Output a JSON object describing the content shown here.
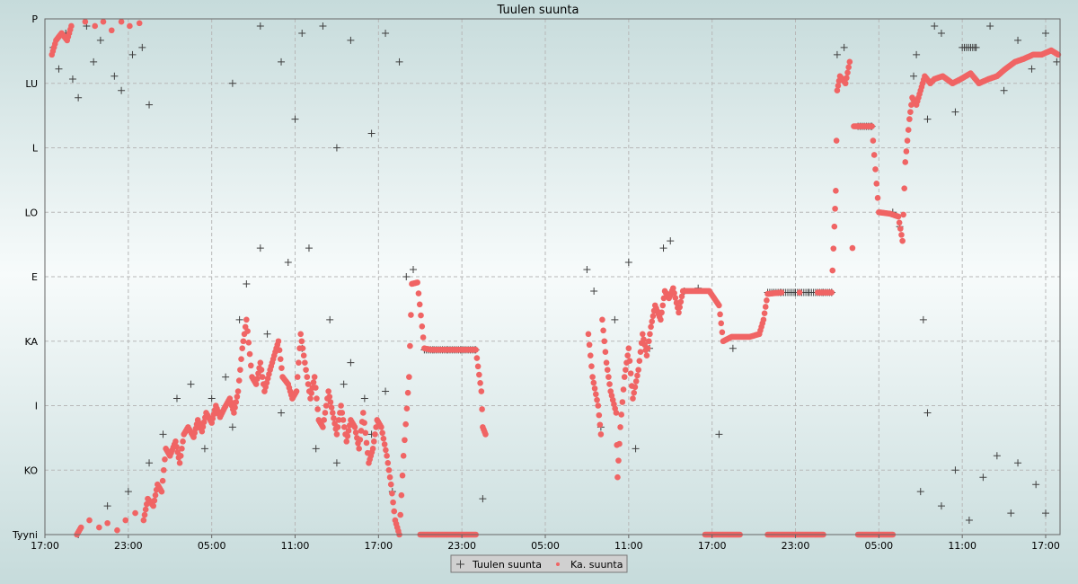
{
  "chart_data": {
    "type": "scatter",
    "title": "Tuulen suunta",
    "xlabel": "",
    "ylabel": "",
    "x_unit": "hours from first tick (17:00)",
    "xlim": [
      0,
      73
    ],
    "ylim": [
      0,
      360
    ],
    "grid": true,
    "legend_position": "bottom-center",
    "x_ticks": [
      {
        "h": 0,
        "label": "17:00"
      },
      {
        "h": 6,
        "label": "23:00"
      },
      {
        "h": 12,
        "label": "05:00"
      },
      {
        "h": 18,
        "label": "11:00"
      },
      {
        "h": 24,
        "label": "17:00"
      },
      {
        "h": 30,
        "label": "23:00"
      },
      {
        "h": 36,
        "label": "05:00"
      },
      {
        "h": 42,
        "label": "11:00"
      },
      {
        "h": 48,
        "label": "17:00"
      },
      {
        "h": 54,
        "label": "23:00"
      },
      {
        "h": 60,
        "label": "05:00"
      },
      {
        "h": 66,
        "label": "11:00"
      },
      {
        "h": 72,
        "label": "17:00"
      }
    ],
    "y_ticks": [
      {
        "deg": 0,
        "label": "Tyyni"
      },
      {
        "deg": 45,
        "label": "KO"
      },
      {
        "deg": 90,
        "label": "I"
      },
      {
        "deg": 135,
        "label": "KA"
      },
      {
        "deg": 180,
        "label": "E"
      },
      {
        "deg": 225,
        "label": "LO"
      },
      {
        "deg": 270,
        "label": "L"
      },
      {
        "deg": 315,
        "label": "LU"
      },
      {
        "deg": 360,
        "label": "P"
      }
    ],
    "series": [
      {
        "name": "Tuulen suunta",
        "marker": "plus",
        "color": "#404040",
        "points": [
          [
            0.6,
            340
          ],
          [
            1.0,
            325
          ],
          [
            1.5,
            350
          ],
          [
            2.0,
            318
          ],
          [
            2.4,
            305
          ],
          [
            3.0,
            355
          ],
          [
            3.5,
            330
          ],
          [
            4.0,
            345
          ],
          [
            5.0,
            320
          ],
          [
            5.5,
            310
          ],
          [
            6.3,
            335
          ],
          [
            7.0,
            340
          ],
          [
            7.5,
            300
          ],
          [
            2.4,
            0
          ],
          [
            4.5,
            20
          ],
          [
            6.0,
            30
          ],
          [
            7.5,
            50
          ],
          [
            8.5,
            70
          ],
          [
            9.5,
            95
          ],
          [
            10.5,
            105
          ],
          [
            11.5,
            60
          ],
          [
            12.0,
            95
          ],
          [
            13.0,
            110
          ],
          [
            13.5,
            75
          ],
          [
            14.0,
            150
          ],
          [
            14.5,
            175
          ],
          [
            15.5,
            200
          ],
          [
            16.0,
            140
          ],
          [
            17.0,
            85
          ],
          [
            17.5,
            190
          ],
          [
            18.5,
            130
          ],
          [
            19.0,
            200
          ],
          [
            19.5,
            60
          ],
          [
            20.5,
            150
          ],
          [
            21.0,
            50
          ],
          [
            21.5,
            105
          ],
          [
            22.0,
            120
          ],
          [
            23.0,
            95
          ],
          [
            23.5,
            70
          ],
          [
            24.5,
            100
          ],
          [
            25.0,
            30
          ],
          [
            26.0,
            180
          ],
          [
            26.5,
            185
          ],
          [
            27.3,
            129
          ],
          [
            28,
            129
          ],
          [
            29,
            129
          ],
          [
            30,
            129
          ],
          [
            31,
            129
          ],
          [
            31.5,
            25
          ],
          [
            39.0,
            185
          ],
          [
            39.5,
            170
          ],
          [
            40.0,
            75
          ],
          [
            41.0,
            150
          ],
          [
            42.0,
            190
          ],
          [
            42.5,
            60
          ],
          [
            43.5,
            130
          ],
          [
            44.5,
            200
          ],
          [
            45.0,
            205
          ],
          [
            46,
            170
          ],
          [
            47,
            172
          ],
          [
            48.5,
            70
          ],
          [
            49.5,
            130
          ],
          [
            52,
            169
          ],
          [
            53,
            169
          ],
          [
            54,
            169
          ],
          [
            55,
            169
          ],
          [
            56,
            169
          ],
          [
            56.6,
            169
          ],
          [
            57.0,
            335
          ],
          [
            57.5,
            340
          ],
          [
            58.5,
            285
          ],
          [
            59.5,
            285
          ],
          [
            61,
            225
          ],
          [
            61.5,
            215
          ],
          [
            62.5,
            320
          ],
          [
            62.7,
            335
          ],
          [
            63.5,
            290
          ],
          [
            64.0,
            355
          ],
          [
            64.5,
            350
          ],
          [
            65.5,
            295
          ],
          [
            66.0,
            340
          ],
          [
            67.0,
            340
          ],
          [
            68.0,
            355
          ],
          [
            69.0,
            310
          ],
          [
            70.0,
            345
          ],
          [
            71.0,
            325
          ],
          [
            72.0,
            350
          ],
          [
            72.8,
            330
          ],
          [
            63.2,
            150
          ],
          [
            63.5,
            85
          ],
          [
            63,
            30
          ],
          [
            64.5,
            20
          ],
          [
            65.5,
            45
          ],
          [
            66.5,
            10
          ],
          [
            67.5,
            40
          ],
          [
            68.5,
            55
          ],
          [
            69.5,
            15
          ],
          [
            70,
            50
          ],
          [
            71.3,
            35
          ],
          [
            72.0,
            15
          ],
          [
            15.5,
            355
          ],
          [
            17,
            330
          ],
          [
            18.5,
            350
          ],
          [
            20,
            355
          ],
          [
            22,
            345
          ],
          [
            24.5,
            350
          ],
          [
            25.5,
            330
          ],
          [
            13.5,
            315
          ],
          [
            18,
            290
          ],
          [
            21,
            270
          ],
          [
            23.5,
            280
          ]
        ]
      },
      {
        "name": "Ka. suunta",
        "marker": "dot",
        "color": "#f06464",
        "points": [
          [
            0.5,
            335
          ],
          [
            0.8,
            345
          ],
          [
            1.2,
            350
          ],
          [
            1.6,
            345
          ],
          [
            1.9,
            355
          ],
          [
            2.3,
            0
          ],
          [
            2.6,
            5
          ],
          [
            2.9,
            358
          ],
          [
            3.2,
            10
          ],
          [
            3.6,
            355
          ],
          [
            3.9,
            5
          ],
          [
            4.2,
            358
          ],
          [
            4.5,
            8
          ],
          [
            4.8,
            352
          ],
          [
            5.2,
            3
          ],
          [
            5.5,
            358
          ],
          [
            5.8,
            10
          ],
          [
            6.1,
            355
          ],
          [
            6.5,
            15
          ],
          [
            6.8,
            357
          ],
          [
            7.1,
            10
          ],
          [
            7.4,
            25
          ],
          [
            7.8,
            20
          ],
          [
            8.1,
            35
          ],
          [
            8.4,
            30
          ],
          [
            8.7,
            60
          ],
          [
            9.0,
            55
          ],
          [
            9.4,
            65
          ],
          [
            9.7,
            50
          ],
          [
            10.0,
            70
          ],
          [
            10.3,
            75
          ],
          [
            10.7,
            68
          ],
          [
            11.0,
            80
          ],
          [
            11.3,
            72
          ],
          [
            11.6,
            85
          ],
          [
            12.0,
            78
          ],
          [
            12.3,
            90
          ],
          [
            12.6,
            82
          ],
          [
            12.9,
            88
          ],
          [
            13.3,
            95
          ],
          [
            13.6,
            85
          ],
          [
            13.9,
            100
          ],
          [
            14.2,
            130
          ],
          [
            14.5,
            150
          ],
          [
            14.9,
            110
          ],
          [
            15.2,
            105
          ],
          [
            15.5,
            120
          ],
          [
            15.8,
            100
          ],
          [
            16.2,
            115
          ],
          [
            16.5,
            125
          ],
          [
            16.8,
            135
          ],
          [
            17.1,
            110
          ],
          [
            17.5,
            105
          ],
          [
            17.8,
            95
          ],
          [
            18.1,
            100
          ],
          [
            18.4,
            140
          ],
          [
            18.7,
            120
          ],
          [
            19.1,
            95
          ],
          [
            19.4,
            110
          ],
          [
            19.7,
            80
          ],
          [
            20.0,
            75
          ],
          [
            20.4,
            100
          ],
          [
            20.7,
            85
          ],
          [
            21.0,
            70
          ],
          [
            21.3,
            90
          ],
          [
            21.7,
            65
          ],
          [
            22.0,
            80
          ],
          [
            22.3,
            75
          ],
          [
            22.6,
            60
          ],
          [
            22.9,
            85
          ],
          [
            23.3,
            50
          ],
          [
            23.6,
            60
          ],
          [
            23.9,
            80
          ],
          [
            24.2,
            75
          ],
          [
            24.6,
            55
          ],
          [
            24.9,
            35
          ],
          [
            25.2,
            10
          ],
          [
            25.5,
            0
          ],
          [
            25.8,
            55
          ],
          [
            26.2,
            110
          ],
          [
            26.4,
            175
          ],
          [
            26.8,
            176
          ],
          [
            27.3,
            130
          ],
          [
            27.8,
            129
          ],
          [
            28.4,
            129
          ],
          [
            29.1,
            129
          ],
          [
            29.7,
            129
          ],
          [
            30.4,
            129
          ],
          [
            31.0,
            129
          ],
          [
            31.4,
            100
          ],
          [
            31.5,
            75
          ],
          [
            31.7,
            70
          ],
          [
            27.0,
            0
          ],
          [
            28.0,
            0
          ],
          [
            29.0,
            0
          ],
          [
            30.0,
            0
          ],
          [
            31.0,
            0
          ],
          [
            39.1,
            140
          ],
          [
            39.4,
            110
          ],
          [
            39.8,
            90
          ],
          [
            40.0,
            70
          ],
          [
            40.1,
            150
          ],
          [
            40.4,
            120
          ],
          [
            40.7,
            100
          ],
          [
            41.1,
            85
          ],
          [
            41.2,
            40
          ],
          [
            41.4,
            75
          ],
          [
            41.7,
            110
          ],
          [
            42.0,
            130
          ],
          [
            42.3,
            95
          ],
          [
            42.7,
            115
          ],
          [
            43.0,
            140
          ],
          [
            43.3,
            125
          ],
          [
            43.6,
            145
          ],
          [
            43.9,
            160
          ],
          [
            44.3,
            150
          ],
          [
            44.6,
            170
          ],
          [
            44.9,
            165
          ],
          [
            45.2,
            172
          ],
          [
            45.6,
            155
          ],
          [
            45.9,
            170
          ],
          [
            46.5,
            170
          ],
          [
            47.2,
            170
          ],
          [
            47.8,
            170
          ],
          [
            48.5,
            160
          ],
          [
            48.8,
            135
          ],
          [
            49.4,
            138
          ],
          [
            50.1,
            138
          ],
          [
            50.7,
            138
          ],
          [
            51.4,
            140
          ],
          [
            51.7,
            150
          ],
          [
            52.0,
            168
          ],
          [
            53.0,
            169
          ],
          [
            54.3,
            169
          ],
          [
            55.6,
            169
          ],
          [
            56.6,
            169
          ],
          [
            56.8,
            215
          ],
          [
            56.9,
            240
          ],
          [
            57.0,
            310
          ],
          [
            57.2,
            320
          ],
          [
            57.6,
            315
          ],
          [
            57.9,
            330
          ],
          [
            58.1,
            200
          ],
          [
            58.2,
            285
          ],
          [
            58.8,
            285
          ],
          [
            59.5,
            285
          ],
          [
            60.0,
            225
          ],
          [
            60.8,
            224
          ],
          [
            61.4,
            222
          ],
          [
            61.7,
            205
          ],
          [
            61.9,
            260
          ],
          [
            62.2,
            290
          ],
          [
            62.4,
            305
          ],
          [
            62.7,
            300
          ],
          [
            63.0,
            310
          ],
          [
            63.3,
            320
          ],
          [
            63.7,
            315
          ],
          [
            64.0,
            318
          ],
          [
            64.6,
            320
          ],
          [
            65.3,
            315
          ],
          [
            65.9,
            318
          ],
          [
            66.6,
            322
          ],
          [
            67.2,
            315
          ],
          [
            67.9,
            318
          ],
          [
            68.5,
            320
          ],
          [
            69.1,
            325
          ],
          [
            69.8,
            330
          ],
          [
            70.4,
            332
          ],
          [
            71.1,
            335
          ],
          [
            71.7,
            335
          ],
          [
            72.4,
            338
          ],
          [
            72.9,
            335
          ],
          [
            47.5,
            0
          ],
          [
            48.0,
            0
          ],
          [
            49.0,
            0
          ],
          [
            50.0,
            0
          ],
          [
            52.0,
            0
          ],
          [
            53.0,
            0
          ],
          [
            54.0,
            0
          ],
          [
            55.0,
            0
          ],
          [
            56.0,
            0
          ],
          [
            58.5,
            0
          ],
          [
            59.0,
            0
          ],
          [
            60.0,
            0
          ],
          [
            61.0,
            0
          ]
        ]
      }
    ]
  }
}
